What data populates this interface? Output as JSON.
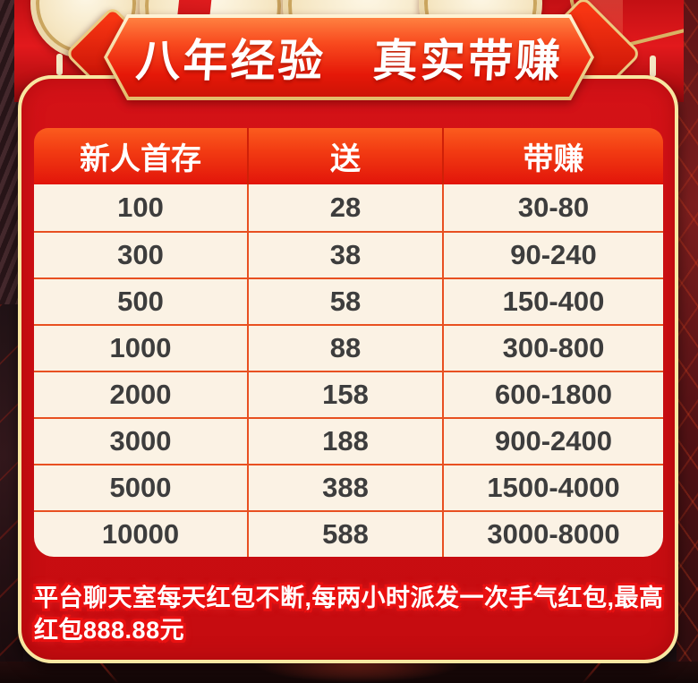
{
  "banner": {
    "title": "八年经验　真实带赚"
  },
  "table": {
    "headers": [
      "新人首存",
      "送",
      "带赚"
    ],
    "rows": [
      {
        "deposit": "100",
        "bonus": "28",
        "earn": "30-80"
      },
      {
        "deposit": "300",
        "bonus": "38",
        "earn": "90-240"
      },
      {
        "deposit": "500",
        "bonus": "58",
        "earn": "150-400"
      },
      {
        "deposit": "1000",
        "bonus": "88",
        "earn": "300-800"
      },
      {
        "deposit": "2000",
        "bonus": "158",
        "earn": "600-1800"
      },
      {
        "deposit": "3000",
        "bonus": "188",
        "earn": "900-2400"
      },
      {
        "deposit": "5000",
        "bonus": "388",
        "earn": "1500-4000"
      },
      {
        "deposit": "10000",
        "bonus": "588",
        "earn": "3000-8000"
      }
    ]
  },
  "notice": {
    "text": "平台聊天室每天红包不断,每两小时派发一次手气红包,最高\n红包888.88元"
  },
  "icons": {
    "gold_coin": "coin-icon",
    "red_diamond": "diamond-icon"
  },
  "colors": {
    "panel_red": "#cd0e12",
    "gold_border": "#f8e7a1",
    "banner_gradient_top": "#ff8040",
    "banner_gradient_bottom": "#cd1306",
    "header_gradient_top": "#fb5c1e",
    "header_gradient_bottom": "#e2150a",
    "table_body_bg": "#fbf2e4",
    "table_text": "#3d3d3d",
    "table_divider": "#e85021",
    "notice_outline": "#ea1111",
    "background_dark": "#1d0f12"
  }
}
